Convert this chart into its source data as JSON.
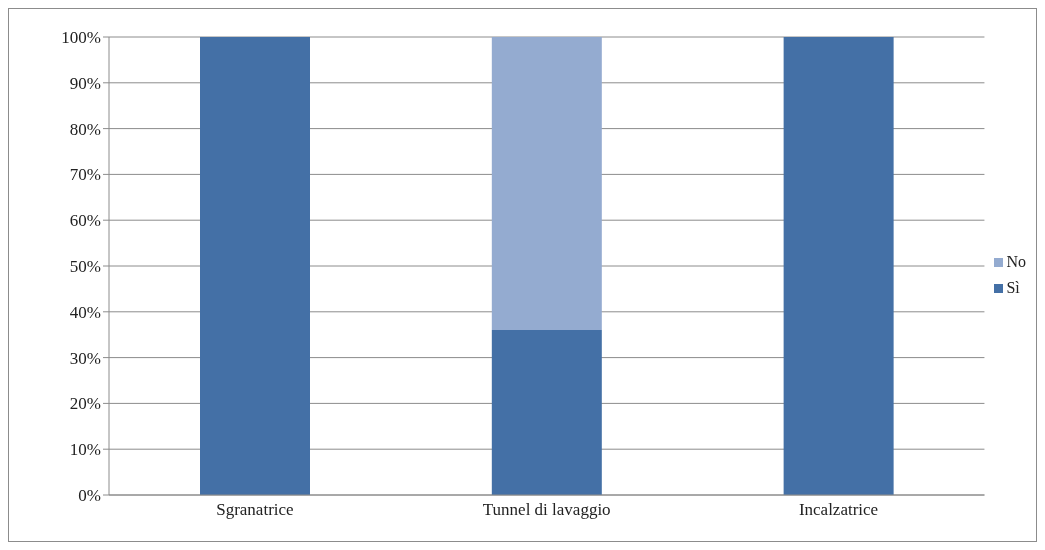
{
  "chart_data": {
    "type": "bar",
    "stacked": true,
    "categories": [
      "Sgranatrice",
      "Tunnel di lavaggio",
      "Incalzatrice"
    ],
    "series": [
      {
        "name": "Sì",
        "color": "#4470a6",
        "values": [
          100,
          36,
          100
        ]
      },
      {
        "name": "No",
        "color": "#94abd0",
        "values": [
          0,
          64,
          0
        ]
      }
    ],
    "ylim": [
      0,
      100
    ],
    "yticks": [
      {
        "value": 0,
        "label": "0%"
      },
      {
        "value": 10,
        "label": "10%"
      },
      {
        "value": 20,
        "label": "20%"
      },
      {
        "value": 30,
        "label": "30%"
      },
      {
        "value": 40,
        "label": "40%"
      },
      {
        "value": 50,
        "label": "50%"
      },
      {
        "value": 60,
        "label": "60%"
      },
      {
        "value": 70,
        "label": "70%"
      },
      {
        "value": 80,
        "label": "80%"
      },
      {
        "value": 90,
        "label": "90%"
      },
      {
        "value": 100,
        "label": "100%"
      }
    ],
    "grid": "y",
    "legend": "right"
  }
}
